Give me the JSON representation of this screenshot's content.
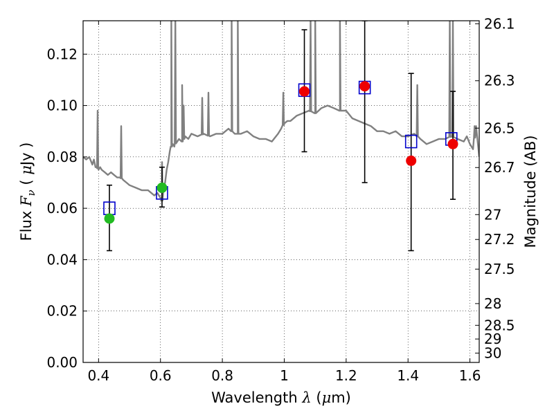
{
  "chart_data": {
    "type": "scatter",
    "title": "",
    "xlabel": "Wavelength",
    "xlabel_symbol": "λ",
    "xlabel_unit_open": " (",
    "xlabel_unit_mu": "μ",
    "xlabel_unit_rest": "m)",
    "ylabel": "Flux",
    "ylabel_symbol": "F",
    "ylabel_symbol_sub": "ν",
    "ylabel_unit_open": "( ",
    "ylabel_unit_mu": "μ",
    "ylabel_unit_rest": "Jy )",
    "y2label": "Magnitude (AB)",
    "xlim": [
      0.35,
      1.63
    ],
    "ylim": [
      0.0,
      0.133
    ],
    "grid": true,
    "x_ticks": [
      0.4,
      0.6,
      0.8,
      1.0,
      1.2,
      1.4,
      1.6
    ],
    "x_tick_labels": [
      "0.4",
      "0.6",
      "0.8",
      "1",
      "1.2",
      "1.4",
      "1.6"
    ],
    "y_ticks": [
      0.0,
      0.02,
      0.04,
      0.06,
      0.08,
      0.1,
      0.12
    ],
    "y_tick_labels": [
      "0.00",
      "0.02",
      "0.04",
      "0.06",
      "0.08",
      "0.10",
      "0.12"
    ],
    "y2_ticks": [
      26.1,
      26.3,
      26.5,
      26.7,
      27,
      27.2,
      27.5,
      28,
      28.5,
      29,
      30
    ],
    "y2_tick_labels": [
      "26.1",
      "26.3",
      "26.5",
      "26.7",
      "27",
      "27.2",
      "27.5",
      "28",
      "28.5",
      "29",
      "30"
    ],
    "model_spectrum": {
      "color": "#808080",
      "x": [
        0.35,
        0.36,
        0.37,
        0.38,
        0.385,
        0.39,
        0.395,
        0.4,
        0.405,
        0.41,
        0.42,
        0.43,
        0.44,
        0.45,
        0.46,
        0.47,
        0.48,
        0.49,
        0.5,
        0.52,
        0.54,
        0.56,
        0.58,
        0.59,
        0.6,
        0.605,
        0.61,
        0.615,
        0.62,
        0.625,
        0.63,
        0.635,
        0.64,
        0.645,
        0.65,
        0.66,
        0.67,
        0.68,
        0.69,
        0.7,
        0.72,
        0.74,
        0.76,
        0.78,
        0.8,
        0.81,
        0.82,
        0.83,
        0.84,
        0.85,
        0.86,
        0.88,
        0.9,
        0.92,
        0.94,
        0.96,
        0.98,
        0.99,
        1.0,
        1.01,
        1.02,
        1.04,
        1.06,
        1.08,
        1.1,
        1.12,
        1.14,
        1.16,
        1.18,
        1.2,
        1.22,
        1.24,
        1.26,
        1.28,
        1.3,
        1.32,
        1.34,
        1.36,
        1.38,
        1.4,
        1.42,
        1.44,
        1.46,
        1.48,
        1.5,
        1.52,
        1.54,
        1.56,
        1.58,
        1.59,
        1.6,
        1.61,
        1.62,
        1.63
      ],
      "y": [
        0.08,
        0.079,
        0.08,
        0.077,
        0.079,
        0.076,
        0.076,
        0.075,
        0.076,
        0.075,
        0.074,
        0.073,
        0.074,
        0.073,
        0.072,
        0.072,
        0.071,
        0.07,
        0.069,
        0.068,
        0.067,
        0.067,
        0.065,
        0.066,
        0.064,
        0.063,
        0.068,
        0.07,
        0.075,
        0.078,
        0.082,
        0.084,
        0.085,
        0.084,
        0.086,
        0.087,
        0.086,
        0.088,
        0.087,
        0.089,
        0.088,
        0.089,
        0.088,
        0.089,
        0.089,
        0.09,
        0.091,
        0.09,
        0.089,
        0.089,
        0.089,
        0.09,
        0.088,
        0.087,
        0.087,
        0.086,
        0.089,
        0.091,
        0.093,
        0.094,
        0.094,
        0.096,
        0.097,
        0.098,
        0.097,
        0.099,
        0.1,
        0.099,
        0.098,
        0.098,
        0.095,
        0.094,
        0.093,
        0.092,
        0.09,
        0.09,
        0.089,
        0.09,
        0.088,
        0.088,
        0.089,
        0.087,
        0.085,
        0.086,
        0.087,
        0.087,
        0.088,
        0.087,
        0.086,
        0.088,
        0.085,
        0.083,
        0.092,
        0.08
      ],
      "spikes": [
        {
          "x": 0.397,
          "y": 0.098
        },
        {
          "x": 0.473,
          "y": 0.092
        },
        {
          "x": 0.605,
          "y": 0.078
        },
        {
          "x": 0.635,
          "y": 0.133
        },
        {
          "x": 0.648,
          "y": 0.133
        },
        {
          "x": 0.67,
          "y": 0.108
        },
        {
          "x": 0.675,
          "y": 0.1
        },
        {
          "x": 0.735,
          "y": 0.103
        },
        {
          "x": 0.755,
          "y": 0.105
        },
        {
          "x": 0.83,
          "y": 0.133
        },
        {
          "x": 0.85,
          "y": 0.133
        },
        {
          "x": 0.997,
          "y": 0.105
        },
        {
          "x": 1.085,
          "y": 0.133
        },
        {
          "x": 1.1,
          "y": 0.133
        },
        {
          "x": 1.18,
          "y": 0.133
        },
        {
          "x": 1.43,
          "y": 0.108
        },
        {
          "x": 1.535,
          "y": 0.133
        },
        {
          "x": 1.545,
          "y": 0.133
        },
        {
          "x": 1.615,
          "y": 0.092
        }
      ]
    },
    "series": [
      {
        "marker": "square",
        "color": "#0000cc",
        "x": [
          0.435,
          0.605,
          1.065,
          1.26,
          1.41,
          1.54
        ],
        "y": [
          0.06,
          0.066,
          0.106,
          0.107,
          0.086,
          0.087
        ]
      },
      {
        "marker": "circle",
        "color": "#22bb22",
        "x": [
          0.435,
          0.605
        ],
        "y": [
          0.056,
          0.068
        ],
        "yerr_low": [
          0.0435,
          0.0605
        ],
        "yerr_high": [
          0.069,
          0.076
        ]
      },
      {
        "marker": "circle",
        "color": "#ee0000",
        "x": [
          1.065,
          1.26,
          1.41,
          1.545
        ],
        "y": [
          0.1055,
          0.1075,
          0.0785,
          0.085
        ],
        "yerr_low": [
          0.082,
          0.07,
          0.0435,
          0.0635
        ],
        "yerr_high": [
          0.1295,
          0.133,
          0.1125,
          0.1055
        ]
      }
    ]
  }
}
